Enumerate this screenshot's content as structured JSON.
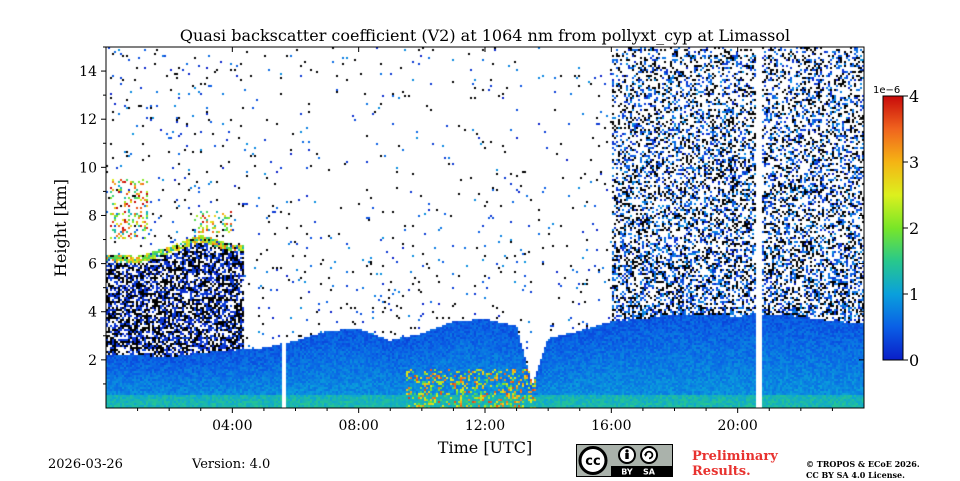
{
  "chart_data": {
    "type": "heatmap",
    "title": "Quasi backscatter coefficient (V2) at 1064 nm from pollyxt_cyp at Limassol",
    "xlabel": "Time [UTC]",
    "ylabel": "Height [km]",
    "x_range_hours": [
      0,
      24
    ],
    "ylim": [
      0,
      15
    ],
    "x_ticks": [
      {
        "hour": 4,
        "label": "04:00"
      },
      {
        "hour": 8,
        "label": "08:00"
      },
      {
        "hour": 12,
        "label": "12:00"
      },
      {
        "hour": 16,
        "label": "16:00"
      },
      {
        "hour": 20,
        "label": "20:00"
      }
    ],
    "y_ticks": [
      {
        "value": 2,
        "label": "2"
      },
      {
        "value": 4,
        "label": "4"
      },
      {
        "value": 6,
        "label": "6"
      },
      {
        "value": 8,
        "label": "8"
      },
      {
        "value": 10,
        "label": "10"
      },
      {
        "value": 12,
        "label": "12"
      },
      {
        "value": 14,
        "label": "14"
      }
    ],
    "colorbar": {
      "range": [
        0,
        4
      ],
      "scale_label": "1e−6",
      "ticks": [
        {
          "value": 0,
          "label": "0"
        },
        {
          "value": 1,
          "label": "1"
        },
        {
          "value": 2,
          "label": "2"
        },
        {
          "value": 3,
          "label": "3"
        },
        {
          "value": 4,
          "label": "4"
        }
      ],
      "colors": [
        "#0a1ec8",
        "#0a5fe6",
        "#0aa0dc",
        "#28c88c",
        "#78e628",
        "#dcf01e",
        "#f5b414",
        "#f0641e",
        "#c80a0a"
      ]
    },
    "data_gaps_hours": [
      [
        5.55,
        5.72
      ],
      [
        20.55,
        20.78
      ]
    ],
    "bl_top_km": [
      [
        0,
        2.2
      ],
      [
        1,
        2.2
      ],
      [
        2,
        2.1
      ],
      [
        3,
        2.3
      ],
      [
        4,
        2.4
      ],
      [
        5,
        2.5
      ],
      [
        6,
        2.8
      ],
      [
        7,
        3.2
      ],
      [
        8,
        3.3
      ],
      [
        9,
        2.8
      ],
      [
        10,
        3.1
      ],
      [
        11,
        3.6
      ],
      [
        12,
        3.7
      ],
      [
        13,
        3.4
      ],
      [
        13.5,
        1.0
      ],
      [
        14,
        2.9
      ],
      [
        15,
        3.2
      ],
      [
        16,
        3.6
      ],
      [
        17,
        3.7
      ],
      [
        18,
        3.9
      ],
      [
        19,
        3.9
      ],
      [
        20,
        3.8
      ],
      [
        21,
        3.9
      ],
      [
        22,
        3.8
      ],
      [
        23,
        3.6
      ],
      [
        24,
        3.5
      ]
    ],
    "layer_top_km": [
      [
        0,
        6.4
      ],
      [
        1,
        6.3
      ],
      [
        2,
        6.7
      ],
      [
        3,
        7.2
      ],
      [
        4,
        6.8
      ]
    ],
    "cloud_layer_km": [
      [
        0.1,
        7.0,
        9.5,
        3.5
      ],
      [
        2.8,
        7.3,
        8.2,
        3.0
      ]
    ]
  },
  "footer": {
    "date": "2026-03-26",
    "version": "Version: 4.0",
    "license_badge": {
      "left": "BY",
      "right": "SA",
      "icon": "cc-icon"
    },
    "preliminary": [
      "Preliminary",
      "Results."
    ],
    "copyright": [
      "© TROPOS & ECoE 2026.",
      "CC BY SA 4.0 License."
    ]
  }
}
